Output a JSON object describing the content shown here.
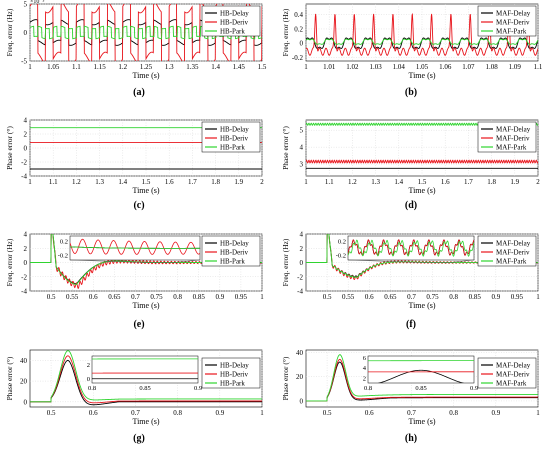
{
  "figure": {
    "panel_labels": [
      "(a)",
      "(b)",
      "(c)",
      "(d)",
      "(e)",
      "(f)",
      "(g)",
      "(h)"
    ]
  },
  "colors": {
    "delay": "#000000",
    "deriv": "#e8141b",
    "park": "#2fd42f"
  },
  "chart_data": [
    {
      "id": "a",
      "type": "line",
      "xlabel": "Time (s)",
      "ylabel": "Freq. error (Hz)",
      "exponent": "×10⁻³",
      "xlim": [
        1,
        1.5
      ],
      "ylim": [
        -5,
        5
      ],
      "xticks": [
        1,
        1.05,
        1.1,
        1.15,
        1.2,
        1.25,
        1.3,
        1.35,
        1.4,
        1.45,
        1.5
      ],
      "xtick_labels": [
        "1",
        "1.05",
        "1.1",
        "1.15",
        "1.2",
        "1.25",
        "1.3",
        "1.35",
        "1.4",
        "1.45",
        "1.5"
      ],
      "yticks": [
        -5,
        0,
        5
      ],
      "ytick_labels": [
        "-5",
        "0",
        "5"
      ],
      "legend": {
        "placement": "top-right",
        "entries": [
          "HB-Delay",
          "HB-Deriv",
          "HB-Park"
        ]
      },
      "series": [
        {
          "name": "HB-Delay",
          "signal": "square",
          "offset": 0,
          "amplitude": 1.8,
          "period": 0.0333
        },
        {
          "name": "HB-Deriv",
          "signal": "square",
          "offset": 0,
          "amplitude": 4.6,
          "period": 0.0333
        },
        {
          "name": "HB-Park",
          "signal": "square",
          "offset": 0,
          "amplitude": 0.9,
          "period": 0.0167
        }
      ]
    },
    {
      "id": "b",
      "type": "line",
      "xlabel": "Time (s)",
      "ylabel": "Freq. error (Hz)",
      "xlim": [
        1,
        1.1
      ],
      "ylim": [
        -0.25,
        0.55
      ],
      "xticks": [
        1,
        1.01,
        1.02,
        1.03,
        1.04,
        1.05,
        1.06,
        1.07,
        1.08,
        1.09,
        1.1
      ],
      "xtick_labels": [
        "1",
        "1.01",
        "1.02",
        "1.03",
        "1.04",
        "1.05",
        "1.06",
        "1.07",
        "1.08",
        "1.09",
        "1.1"
      ],
      "yticks": [
        -0.2,
        0,
        0.2,
        0.4
      ],
      "ytick_labels": [
        "-0.2",
        "0",
        "0.2",
        "0.4"
      ],
      "legend": {
        "placement": "top-right",
        "entries": [
          "MAF-Delay",
          "MAF-Deriv",
          "MAF-Park"
        ]
      },
      "series": [
        {
          "name": "MAF-Delay",
          "signal": "ripple",
          "offset": 0,
          "amplitude": 0.08,
          "period": 0.00833
        },
        {
          "name": "MAF-Deriv",
          "signal": "spikes",
          "offset": 0,
          "amplitude": 0.45,
          "low": -0.12,
          "period": 0.00833
        },
        {
          "name": "MAF-Park",
          "signal": "ripple",
          "offset": 0.02,
          "amplitude": 0.04,
          "period": 0.00833
        }
      ]
    },
    {
      "id": "c",
      "type": "line",
      "xlabel": "Time (s)",
      "ylabel": "Phase error (°)",
      "xlim": [
        1,
        2
      ],
      "ylim": [
        -4,
        4
      ],
      "xticks": [
        1,
        1.1,
        1.2,
        1.3,
        1.4,
        1.5,
        1.6,
        1.7,
        1.8,
        1.9,
        2
      ],
      "xtick_labels": [
        "1",
        "1.1",
        "1.2",
        "1.3",
        "1.4",
        "1.5",
        "1.6",
        "1.7",
        "1.8",
        "1.9",
        "2"
      ],
      "yticks": [
        -4,
        -2,
        0,
        2,
        4
      ],
      "ytick_labels": [
        "-4",
        "-2",
        "0",
        "2",
        "4"
      ],
      "legend": {
        "placement": "top-right",
        "entries": [
          "HB-Delay",
          "HB-Deriv",
          "HB-Park"
        ]
      },
      "series": [
        {
          "name": "HB-Delay",
          "signal": "flat",
          "offset": -3.0
        },
        {
          "name": "HB-Deriv",
          "signal": "flat",
          "offset": 0.8
        },
        {
          "name": "HB-Park",
          "signal": "flat",
          "offset": 2.9
        }
      ]
    },
    {
      "id": "d",
      "type": "line",
      "xlabel": "Time (s)",
      "ylabel": "Phase error (°)",
      "xlim": [
        1,
        2
      ],
      "ylim": [
        2.3,
        5.6
      ],
      "xticks": [
        1,
        1.1,
        1.2,
        1.3,
        1.4,
        1.5,
        1.6,
        1.7,
        1.8,
        1.9,
        2
      ],
      "xtick_labels": [
        "1",
        "1.1",
        "1.2",
        "1.3",
        "1.4",
        "1.5",
        "1.6",
        "1.7",
        "1.8",
        "1.9",
        "2"
      ],
      "yticks": [
        3,
        4,
        5
      ],
      "ytick_labels": [
        "3",
        "4",
        "5"
      ],
      "legend": {
        "placement": "top-right",
        "entries": [
          "MAF-Delay",
          "MAF-Deriv",
          "MAF-Park"
        ]
      },
      "series": [
        {
          "name": "MAF-Delay",
          "signal": "flat",
          "offset": 2.75
        },
        {
          "name": "MAF-Deriv",
          "signal": "dense",
          "offset": 3.15,
          "amplitude": 0.08,
          "period": 0.01
        },
        {
          "name": "MAF-Park",
          "signal": "dense",
          "offset": 5.35,
          "amplitude": 0.06,
          "period": 0.01
        }
      ]
    },
    {
      "id": "e",
      "type": "line",
      "xlabel": "Time (s)",
      "ylabel": "Freq. error (Hz)",
      "xlim": [
        0.45,
        1
      ],
      "ylim": [
        -4,
        4
      ],
      "xticks": [
        0.5,
        0.55,
        0.6,
        0.65,
        0.7,
        0.75,
        0.8,
        0.85,
        0.9,
        0.95,
        1
      ],
      "xtick_labels": [
        "0.5",
        "0.55",
        "0.6",
        "0.65",
        "0.7",
        "0.75",
        "0.8",
        "0.85",
        "0.9",
        "0.95",
        "1"
      ],
      "yticks": [
        -4,
        -2,
        0,
        2,
        4
      ],
      "ytick_labels": [
        "-4",
        "-2",
        "0",
        "2",
        "4"
      ],
      "legend": {
        "placement": "top-right",
        "entries": [
          "HB-Delay",
          "HB-Deriv",
          "HB-Park"
        ]
      },
      "inset": {
        "yticks": [
          0.2,
          -0.2
        ],
        "ytick_labels": [
          "0.2",
          "-0.2"
        ]
      },
      "series": [
        {
          "name": "HB-Delay",
          "signal": "transient",
          "step": 0.5,
          "peak": 4.2,
          "dip": -3.0,
          "dip_time": 0.56,
          "ripple": 0
        },
        {
          "name": "HB-Deriv",
          "signal": "transient",
          "step": 0.5,
          "peak": 4.2,
          "dip": -3.3,
          "dip_time": 0.565,
          "ripple": 0.45
        },
        {
          "name": "HB-Park",
          "signal": "transient",
          "step": 0.5,
          "peak": 4.2,
          "dip": -3.1,
          "dip_time": 0.56,
          "ripple": 0
        }
      ]
    },
    {
      "id": "f",
      "type": "line",
      "xlabel": "Time (s)",
      "ylabel": "Freq. error (Hz)",
      "xlim": [
        0.45,
        1
      ],
      "ylim": [
        -4,
        4
      ],
      "xticks": [
        0.5,
        0.55,
        0.6,
        0.65,
        0.7,
        0.75,
        0.8,
        0.85,
        0.9,
        0.95,
        1
      ],
      "xtick_labels": [
        "0.5",
        "0.55",
        "0.6",
        "0.65",
        "0.7",
        "0.75",
        "0.8",
        "0.85",
        "0.9",
        "0.95",
        "1"
      ],
      "yticks": [
        -4,
        -2,
        0,
        2,
        4
      ],
      "ytick_labels": [
        "-4",
        "-2",
        "0",
        "2",
        "4"
      ],
      "legend": {
        "placement": "top-right",
        "entries": [
          "MAF-Delay",
          "MAF-Deriv",
          "MAF-Park"
        ]
      },
      "inset": {
        "yticks": [
          0.2,
          -0.2
        ],
        "ytick_labels": [
          "0.2",
          "-0.2"
        ]
      },
      "series": [
        {
          "name": "MAF-Delay",
          "signal": "transient",
          "step": 0.5,
          "peak": 4.2,
          "dip": -2.0,
          "dip_time": 0.57,
          "ripple": 0.15
        },
        {
          "name": "MAF-Deriv",
          "signal": "transient",
          "step": 0.5,
          "peak": 4.2,
          "dip": -2.2,
          "dip_time": 0.57,
          "ripple": 0.3
        },
        {
          "name": "MAF-Park",
          "signal": "transient",
          "step": 0.5,
          "peak": 4.2,
          "dip": -2.1,
          "dip_time": 0.57,
          "ripple": 0.1
        }
      ]
    },
    {
      "id": "g",
      "type": "line",
      "xlabel": "Time (s)",
      "ylabel": "Phase error (°)",
      "xlim": [
        0.45,
        1
      ],
      "ylim": [
        -5,
        50
      ],
      "xticks": [
        0.5,
        0.6,
        0.7,
        0.8,
        0.9,
        1
      ],
      "xtick_labels": [
        "0.5",
        "0.6",
        "0.7",
        "0.8",
        "0.9",
        "1"
      ],
      "yticks": [
        0,
        20,
        40
      ],
      "ytick_labels": [
        "0",
        "20",
        "40"
      ],
      "legend": {
        "placement": "right",
        "entries": [
          "HB-Delay",
          "HB-Deriv",
          "HB-Park"
        ]
      },
      "inset": {
        "yticks": [
          2,
          0
        ],
        "ytick_labels": [
          "2",
          "0"
        ],
        "xticks": [
          0.8,
          0.85,
          0.9
        ],
        "xtick_labels": [
          "0.8",
          "0.85",
          "0.9"
        ]
      },
      "series": [
        {
          "name": "HB-Delay",
          "signal": "bump",
          "start": 0.5,
          "peak": 40,
          "peak_time": 0.54,
          "undershoot": -5,
          "settle": 0
        },
        {
          "name": "HB-Deriv",
          "signal": "bump",
          "start": 0.5,
          "peak": 44,
          "peak_time": 0.54,
          "undershoot": -3,
          "settle": 0.8
        },
        {
          "name": "HB-Park",
          "signal": "bump",
          "start": 0.5,
          "peak": 48,
          "peak_time": 0.54,
          "undershoot": -1,
          "settle": 2.8
        }
      ]
    },
    {
      "id": "h",
      "type": "line",
      "xlabel": "Time (s)",
      "ylabel": "Phase error (°)",
      "xlim": [
        0.45,
        1
      ],
      "ylim": [
        -5,
        42
      ],
      "xticks": [
        0.5,
        0.6,
        0.7,
        0.8,
        0.9,
        1
      ],
      "xtick_labels": [
        "0.5",
        "0.6",
        "0.7",
        "0.8",
        "0.9",
        "1"
      ],
      "yticks": [
        0,
        20,
        40
      ],
      "ytick_labels": [
        "0",
        "20",
        "40"
      ],
      "legend": {
        "placement": "right",
        "entries": [
          "MAF-Delay",
          "MAF-Deriv",
          "MAF-Park"
        ]
      },
      "inset": {
        "yticks": [
          6,
          4,
          2
        ],
        "ytick_labels": [
          "6",
          "4",
          "2"
        ],
        "xticks": [
          0.8,
          0.85,
          0.9
        ],
        "xtick_labels": [
          "0.8",
          "0.85",
          "0.9"
        ]
      },
      "series": [
        {
          "name": "MAF-Delay",
          "signal": "bump",
          "start": 0.5,
          "peak": 31,
          "peak_time": 0.53,
          "undershoot": -2,
          "settle": 2.7
        },
        {
          "name": "MAF-Deriv",
          "signal": "bump",
          "start": 0.5,
          "peak": 33,
          "peak_time": 0.53,
          "undershoot": -1,
          "settle": 3.2
        },
        {
          "name": "MAF-Park",
          "signal": "bump",
          "start": 0.5,
          "peak": 36,
          "peak_time": 0.53,
          "undershoot": 0,
          "settle": 5.4
        }
      ]
    }
  ]
}
